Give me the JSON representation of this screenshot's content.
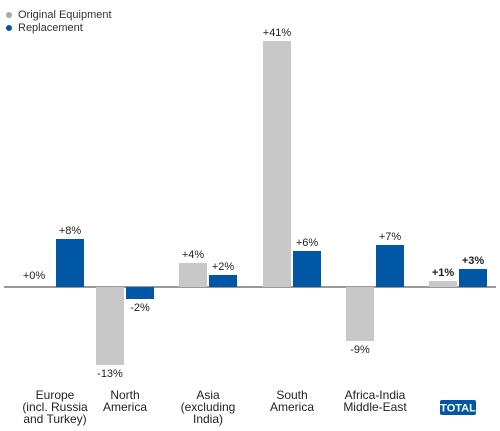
{
  "chart_data": {
    "type": "bar",
    "categories": [
      [
        "Europe",
        "(incl. Russia",
        "and Turkey)"
      ],
      [
        "North",
        "America"
      ],
      [
        "Asia",
        "(excluding",
        "India)"
      ],
      [
        "South",
        "America"
      ],
      [
        "Africa-India",
        "Middle-East"
      ],
      [
        "TOTAL"
      ]
    ],
    "series": [
      {
        "name": "Original Equipment",
        "color": "#c8c8c8",
        "values": [
          0,
          -13,
          4,
          41,
          -9,
          1
        ],
        "labels": [
          "+0%",
          "-13%",
          "+4%",
          "+41%",
          "-9%",
          "+1%"
        ]
      },
      {
        "name": "Replacement",
        "color": "#0057a5",
        "values": [
          8,
          -2,
          2,
          6,
          7,
          3
        ],
        "labels": [
          "+8%",
          "-2%",
          "+2%",
          "+6%",
          "+7%",
          "+3%"
        ]
      }
    ],
    "ylim": [
      -13,
      41
    ],
    "grid": false,
    "legend_position": "top-left",
    "total_badge_color": "#0057a5"
  }
}
